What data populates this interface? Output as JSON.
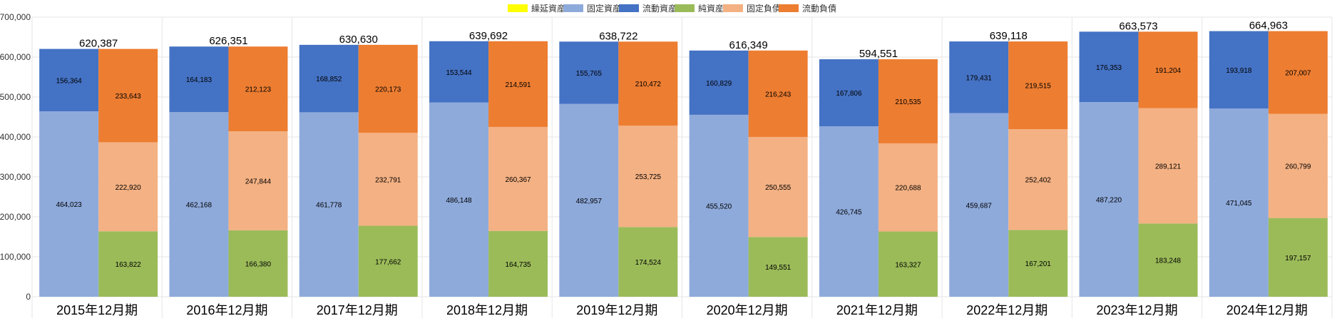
{
  "chart_data": {
    "type": "bar",
    "stacked": true,
    "title": "",
    "xlabel": "",
    "ylabel": "",
    "ylim": [
      0,
      700000
    ],
    "yticks": [
      0,
      100000,
      200000,
      300000,
      400000,
      500000,
      600000,
      700000
    ],
    "ytick_labels": [
      "0",
      "100,000",
      "200,000",
      "300,000",
      "400,000",
      "500,000",
      "600,000",
      "700,000"
    ],
    "grid": true,
    "legend_position": "top-center",
    "categories": [
      "2015年12月期",
      "2016年12月期",
      "2017年12月期",
      "2018年12月期",
      "2019年12月期",
      "2020年12月期",
      "2021年12月期",
      "2022年12月期",
      "2023年12月期",
      "2024年12月期"
    ],
    "totals": [
      620387,
      626351,
      630630,
      639692,
      638722,
      616349,
      594551,
      639118,
      663573,
      664963
    ],
    "total_labels": [
      "620,387",
      "626,351",
      "630,630",
      "639,692",
      "638,722",
      "616,349",
      "594,551",
      "639,118",
      "663,573",
      "664,963"
    ],
    "legend": [
      {
        "name": "繰延資産",
        "color": "#ffff00"
      },
      {
        "name": "固定資産",
        "color": "#8eaadb"
      },
      {
        "name": "流動資産",
        "color": "#4472c4"
      },
      {
        "name": "純資産",
        "color": "#9bbb59"
      },
      {
        "name": "固定負債",
        "color": "#f4b183"
      },
      {
        "name": "流動負債",
        "color": "#ed7d31"
      }
    ],
    "stacks": [
      {
        "name": "assets",
        "series": [
          {
            "name": "繰延資産",
            "color": "#ffff00",
            "values": [
              0,
              0,
              0,
              0,
              0,
              0,
              0,
              0,
              0,
              0
            ],
            "labels": [
              "",
              "",
              "",
              "",
              "",
              "",
              "",
              "",
              "",
              ""
            ]
          },
          {
            "name": "固定資産",
            "color": "#8eaadb",
            "values": [
              464023,
              462168,
              461778,
              486148,
              482957,
              455520,
              426745,
              459687,
              487220,
              471045
            ],
            "labels": [
              "464,023",
              "462,168",
              "461,778",
              "486,148",
              "482,957",
              "455,520",
              "426,745",
              "459,687",
              "487,220",
              "471,045"
            ]
          },
          {
            "name": "流動資産",
            "color": "#4472c4",
            "values": [
              156364,
              164183,
              168852,
              153544,
              155765,
              160829,
              167806,
              179431,
              176353,
              193918
            ],
            "labels": [
              "156,364",
              "164,183",
              "168,852",
              "153,544",
              "155,765",
              "160,829",
              "167,806",
              "179,431",
              "176,353",
              "193,918"
            ]
          }
        ]
      },
      {
        "name": "liabilities",
        "series": [
          {
            "name": "純資産",
            "color": "#9bbb59",
            "values": [
              163822,
              166380,
              177662,
              164735,
              174524,
              149551,
              163327,
              167201,
              183248,
              197157
            ],
            "labels": [
              "163,822",
              "166,380",
              "177,662",
              "164,735",
              "174,524",
              "149,551",
              "163,327",
              "167,201",
              "183,248",
              "197,157"
            ]
          },
          {
            "name": "固定負債",
            "color": "#f4b183",
            "values": [
              222920,
              247844,
              232791,
              260367,
              253725,
              250555,
              220688,
              252402,
              289121,
              260799
            ],
            "labels": [
              "222,920",
              "247,844",
              "232,791",
              "260,367",
              "253,725",
              "250,555",
              "220,688",
              "252,402",
              "289,121",
              "260,799"
            ]
          },
          {
            "name": "流動負債",
            "color": "#ed7d31",
            "values": [
              233643,
              212123,
              220173,
              214591,
              210472,
              216243,
              210535,
              219515,
              191204,
              207007
            ],
            "labels": [
              "233,643",
              "212,123",
              "220,173",
              "214,591",
              "210,472",
              "216,243",
              "210,535",
              "219,515",
              "191,204",
              "207,007"
            ]
          }
        ]
      }
    ]
  }
}
